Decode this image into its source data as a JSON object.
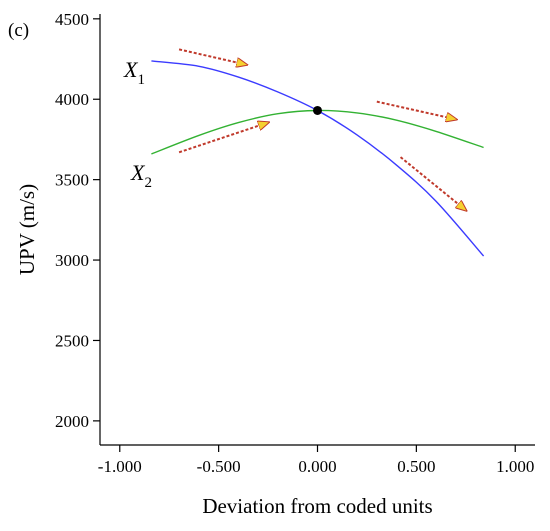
{
  "chart_data": {
    "type": "line",
    "panel_label": "(c)",
    "xlabel": "Deviation from coded units",
    "ylabel": "UPV (m/s)",
    "xlim": [
      -1.1,
      1.1
    ],
    "ylim": [
      1850,
      4530
    ],
    "x_ticks": [
      -1.0,
      -0.5,
      0.0,
      0.5,
      1.0
    ],
    "x_tick_labels": [
      "-1.000",
      "-0.500",
      "0.000",
      "0.500",
      "1.000"
    ],
    "y_ticks": [
      2000,
      2500,
      3000,
      3500,
      4000,
      4500
    ],
    "y_tick_labels": [
      "2000",
      "2500",
      "3000",
      "3500",
      "4000",
      "4500"
    ],
    "grid": false,
    "legend": "none",
    "series": [
      {
        "label_main": "X",
        "label_sub": "1",
        "color": "#3b3bff",
        "x": [
          -0.84,
          -0.6,
          -0.4,
          -0.2,
          0.0,
          0.2,
          0.4,
          0.6,
          0.84
        ],
        "y": [
          4238,
          4205,
          4138,
          4045,
          3930,
          3778,
          3590,
          3365,
          3025
        ]
      },
      {
        "label_main": "X",
        "label_sub": "2",
        "color": "#33b233",
        "x": [
          -0.84,
          -0.6,
          -0.4,
          -0.2,
          0.0,
          0.2,
          0.4,
          0.6,
          0.84
        ],
        "y": [
          3660,
          3775,
          3855,
          3910,
          3930,
          3915,
          3870,
          3800,
          3700
        ]
      }
    ],
    "center_point": {
      "x": 0.0,
      "y": 3930,
      "color": "#000000"
    },
    "arrows": [
      {
        "x1": -0.7,
        "y1": 4310,
        "x2": -0.36,
        "y2": 4215
      },
      {
        "x1": -0.7,
        "y1": 3670,
        "x2": -0.25,
        "y2": 3855
      },
      {
        "x1": 0.3,
        "y1": 3985,
        "x2": 0.7,
        "y2": 3875
      },
      {
        "x1": 0.42,
        "y1": 3640,
        "x2": 0.75,
        "y2": 3310
      }
    ],
    "arrow_line_color": "#c0392b",
    "arrow_head_color": "#f5d130"
  }
}
